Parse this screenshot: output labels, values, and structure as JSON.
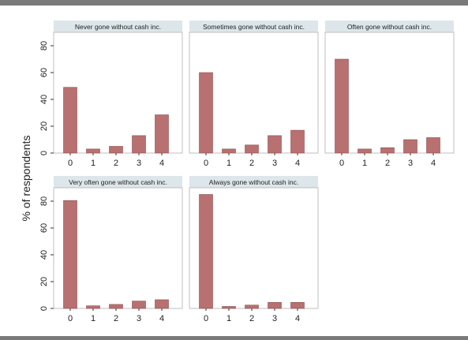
{
  "chart_data": {
    "type": "bar",
    "ylabel": "% of respondents",
    "ylim": [
      0,
      90
    ],
    "yticks": [
      "0",
      "20",
      "40",
      "60",
      "80"
    ],
    "categories": [
      "0",
      "1",
      "2",
      "3",
      "4"
    ],
    "bar_color": "#b87070",
    "panel_header_bg": "#dde6ea",
    "grid": false,
    "panels": [
      {
        "title": "Never gone without cash inc.",
        "values": [
          49,
          3,
          5,
          13,
          28.5
        ]
      },
      {
        "title": "Sometimes gone without cash inc.",
        "values": [
          60,
          3,
          6,
          13,
          17
        ]
      },
      {
        "title": "Often gone without cash inc.",
        "values": [
          70,
          3,
          4,
          10,
          11.5
        ]
      },
      {
        "title": "Very often gone without cash inc.",
        "values": [
          80.5,
          2,
          3,
          5.5,
          6.5
        ]
      },
      {
        "title": "Always gone without cash inc.",
        "values": [
          85,
          1.5,
          2.5,
          4.5,
          4.5
        ]
      }
    ]
  }
}
